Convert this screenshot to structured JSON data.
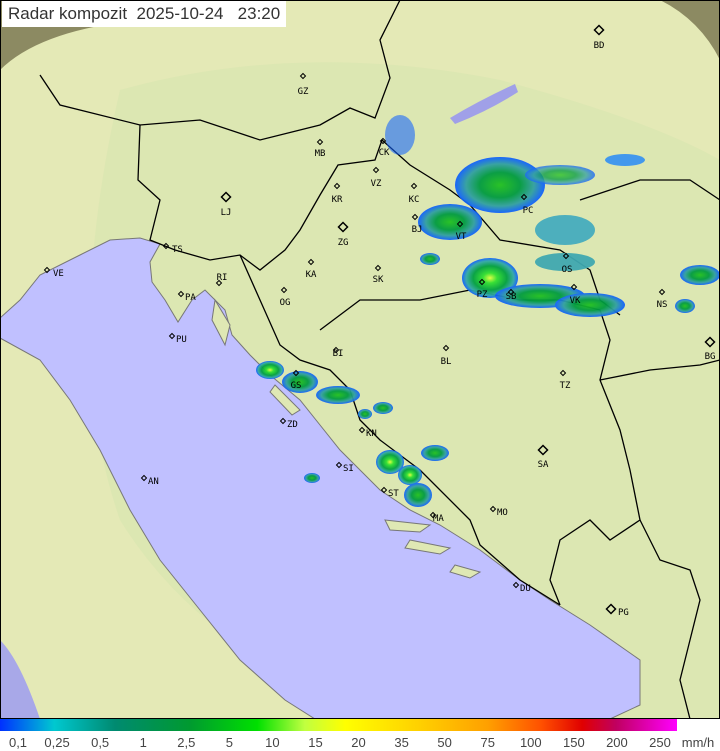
{
  "title": {
    "label": "Radar kompozit",
    "date": "2025-10-24",
    "time": "23:20"
  },
  "colors": {
    "sea": "#c0c0ff",
    "land": "#dfe8b4",
    "outside": "#8c8a62",
    "border": "#000000"
  },
  "cities": [
    {
      "code": "BD",
      "type": "capital"
    },
    {
      "code": "GZ",
      "type": "city"
    },
    {
      "code": "MB",
      "type": "city"
    },
    {
      "code": "CK",
      "type": "city"
    },
    {
      "code": "VZ",
      "type": "city"
    },
    {
      "code": "KR",
      "type": "city"
    },
    {
      "code": "KC",
      "type": "city"
    },
    {
      "code": "LJ",
      "type": "capital"
    },
    {
      "code": "ZG",
      "type": "capital"
    },
    {
      "code": "BJ",
      "type": "city"
    },
    {
      "code": "VT",
      "type": "city"
    },
    {
      "code": "PC",
      "type": "city"
    },
    {
      "code": "TS",
      "type": "city"
    },
    {
      "code": "VE",
      "type": "city"
    },
    {
      "code": "RI",
      "type": "city"
    },
    {
      "code": "KA",
      "type": "city"
    },
    {
      "code": "SK",
      "type": "city"
    },
    {
      "code": "OS",
      "type": "city"
    },
    {
      "code": "PA",
      "type": "city"
    },
    {
      "code": "OG",
      "type": "city"
    },
    {
      "code": "PZ",
      "type": "city"
    },
    {
      "code": "SB",
      "type": "city"
    },
    {
      "code": "VK",
      "type": "city"
    },
    {
      "code": "NS",
      "type": "city"
    },
    {
      "code": "PU",
      "type": "city"
    },
    {
      "code": "BG",
      "type": "capital"
    },
    {
      "code": "BI",
      "type": "city"
    },
    {
      "code": "BL",
      "type": "city"
    },
    {
      "code": "TZ",
      "type": "city"
    },
    {
      "code": "GS",
      "type": "city"
    },
    {
      "code": "ZD",
      "type": "city"
    },
    {
      "code": "KN",
      "type": "city"
    },
    {
      "code": "SA",
      "type": "capital"
    },
    {
      "code": "SI",
      "type": "city"
    },
    {
      "code": "AN",
      "type": "city"
    },
    {
      "code": "ST",
      "type": "city"
    },
    {
      "code": "MO",
      "type": "city"
    },
    {
      "code": "MA",
      "type": "city"
    },
    {
      "code": "DU",
      "type": "city"
    },
    {
      "code": "PG",
      "type": "capital"
    }
  ],
  "legend": {
    "unit": "mm/h",
    "labels": [
      "0,1",
      "0,25",
      "0,5",
      "1",
      "2,5",
      "5",
      "10",
      "15",
      "20",
      "35",
      "50",
      "75",
      "100",
      "150",
      "200",
      "250"
    ]
  }
}
